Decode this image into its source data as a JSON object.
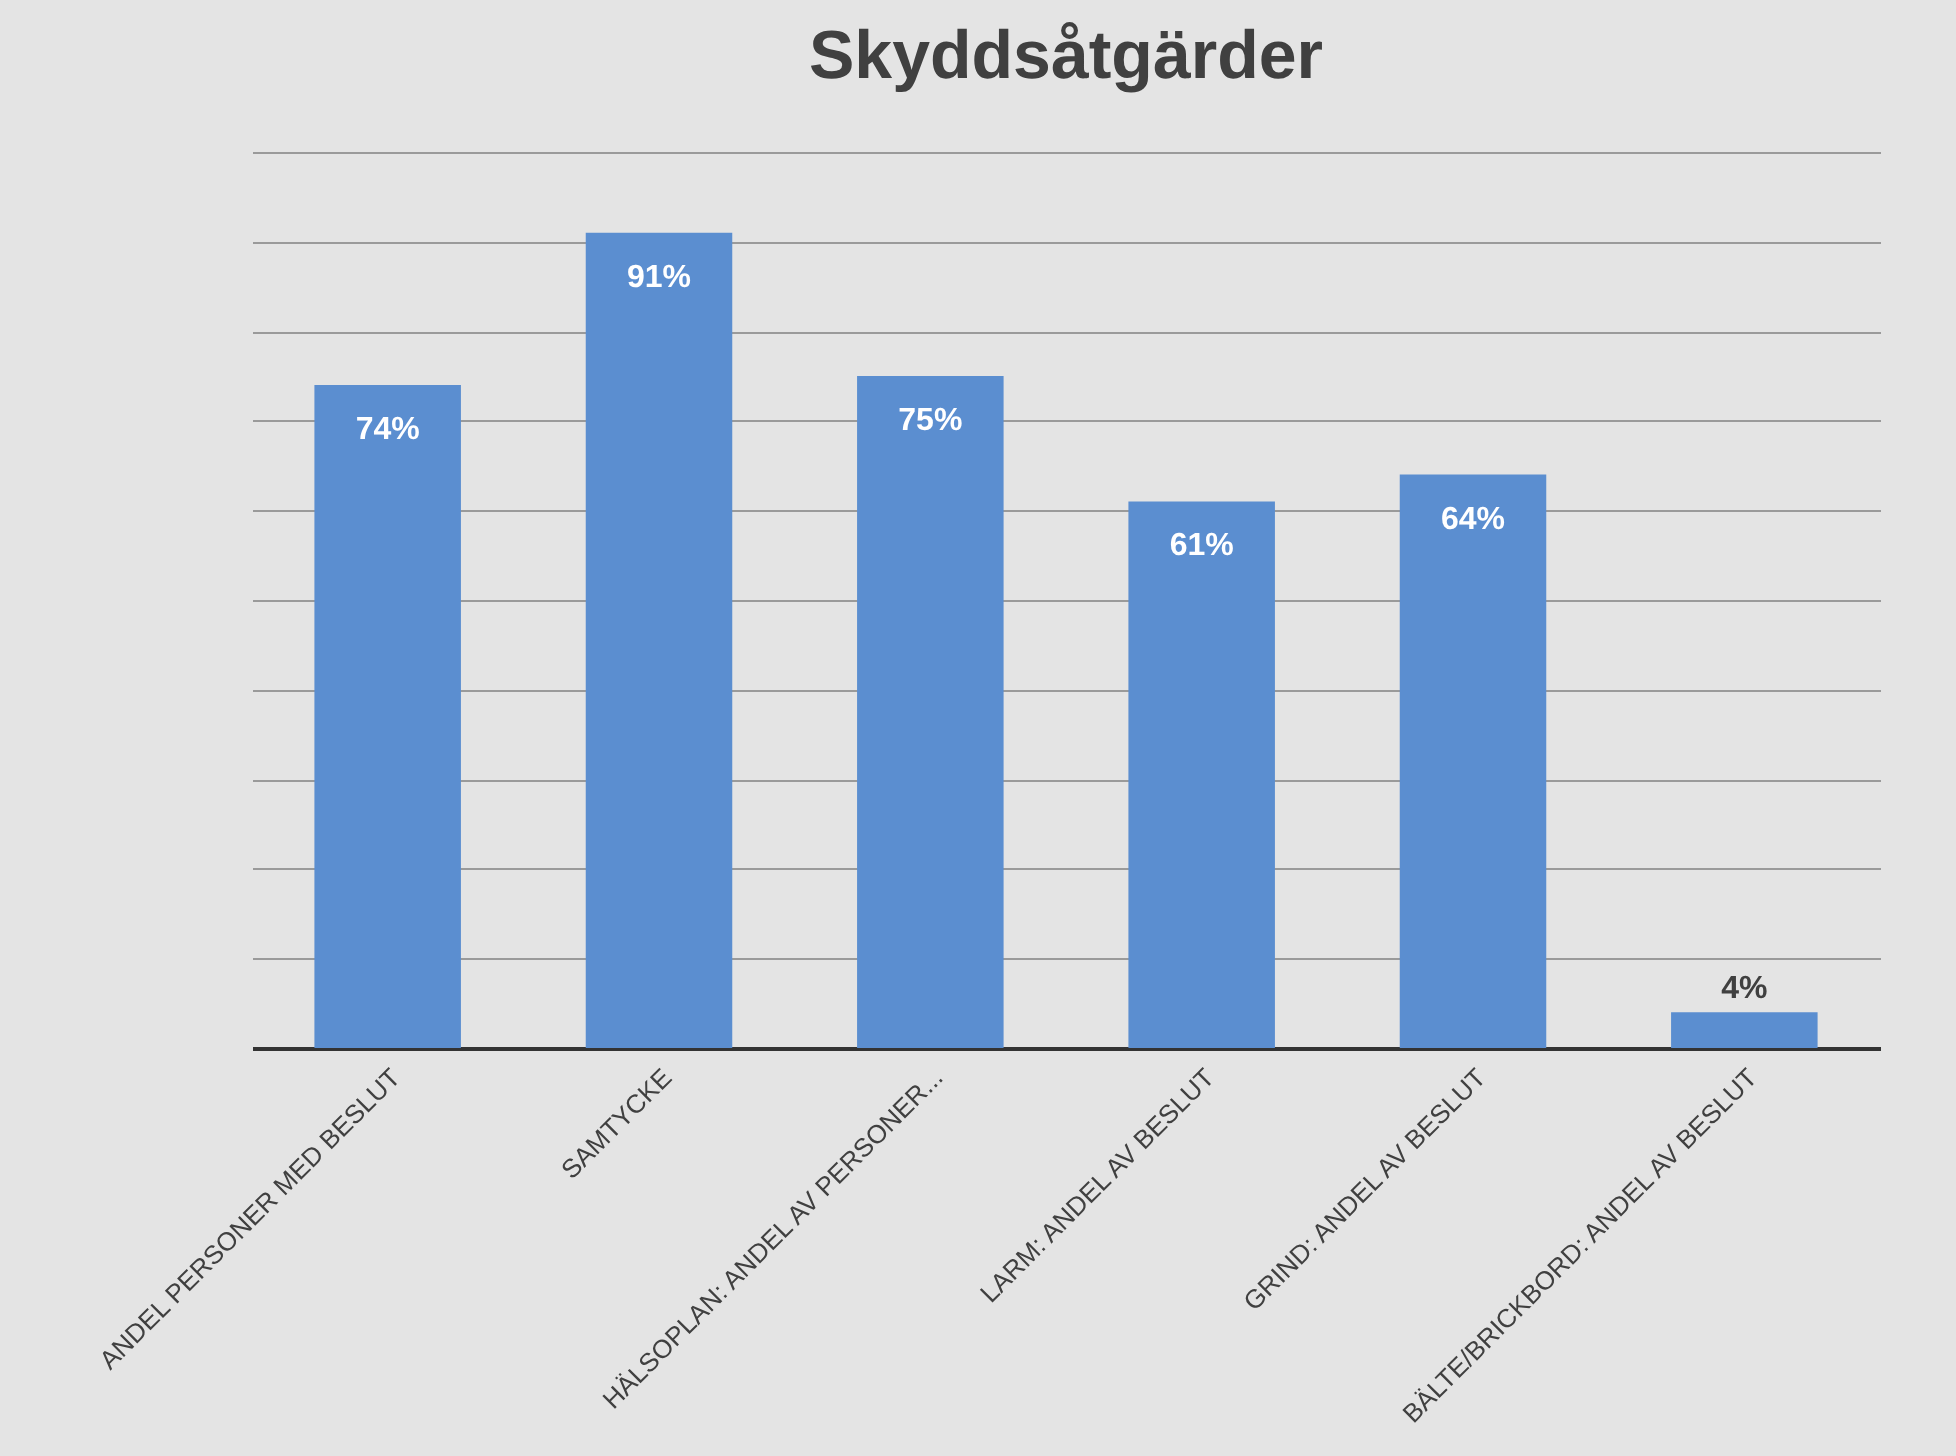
{
  "chart_data": {
    "type": "bar",
    "title": "Skyddsåtgärder",
    "categories": [
      "ANDEL PERSONER MED BESLUT",
      "SAMTYCKE",
      "HÄLSOPLAN: ANDEL AV PERSONER...",
      "LARM: ANDEL AV BESLUT",
      "GRIND: ANDEL AV BESLUT",
      "BÄLTE/BRICKBORD: ANDEL AV BESLUT"
    ],
    "values": [
      74,
      91,
      75,
      61,
      64,
      4
    ],
    "value_labels": [
      "74%",
      "91%",
      "75%",
      "61%",
      "64%",
      "4%"
    ],
    "color": "#5b8ed0",
    "ylim": [
      0,
      100
    ],
    "grid": "y",
    "tick_labels": "x"
  }
}
